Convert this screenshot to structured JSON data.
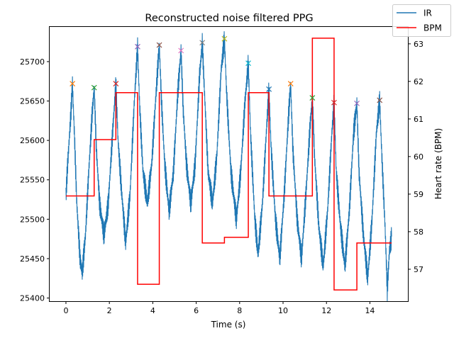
{
  "chart_data": {
    "type": "line",
    "title": "Reconstructed noise filtered PPG",
    "xlabel": "Time (s)",
    "ylabel_right": "Heart rate (BPM)",
    "xlim": [
      -0.75,
      15.75
    ],
    "ylim_left": [
      25396,
      25744
    ],
    "ylim_right": [
      56.15,
      63.45
    ],
    "x_ticks": [
      0,
      2,
      4,
      6,
      8,
      10,
      12,
      14
    ],
    "y_ticks_left": [
      25400,
      25450,
      25500,
      25550,
      25600,
      25650,
      25700
    ],
    "y_ticks_right": [
      57,
      58,
      59,
      60,
      61,
      62,
      63
    ],
    "legend": {
      "placement": "top-right",
      "entries": [
        "IR",
        "BPM"
      ]
    },
    "colors": {
      "ir": "#1f77b4",
      "bpm": "#ff0000"
    },
    "series": [
      {
        "name": "IR",
        "axis": "left",
        "points": [
          [
            0.0,
            25530
          ],
          [
            0.08,
            25570
          ],
          [
            0.16,
            25605
          ],
          [
            0.24,
            25640
          ],
          [
            0.3,
            25672
          ],
          [
            0.4,
            25600
          ],
          [
            0.5,
            25520
          ],
          [
            0.65,
            25450
          ],
          [
            0.75,
            25432
          ],
          [
            0.9,
            25480
          ],
          [
            1.05,
            25560
          ],
          [
            1.2,
            25630
          ],
          [
            1.3,
            25667
          ],
          [
            1.4,
            25590
          ],
          [
            1.55,
            25520
          ],
          [
            1.75,
            25480
          ],
          [
            1.95,
            25520
          ],
          [
            2.15,
            25610
          ],
          [
            2.3,
            25672
          ],
          [
            2.4,
            25600
          ],
          [
            2.55,
            25540
          ],
          [
            2.75,
            25470
          ],
          [
            2.95,
            25530
          ],
          [
            3.15,
            25650
          ],
          [
            3.3,
            25719
          ],
          [
            3.4,
            25640
          ],
          [
            3.55,
            25560
          ],
          [
            3.75,
            25520
          ],
          [
            3.95,
            25570
          ],
          [
            4.15,
            25660
          ],
          [
            4.3,
            25721
          ],
          [
            4.4,
            25650
          ],
          [
            4.55,
            25570
          ],
          [
            4.75,
            25510
          ],
          [
            4.95,
            25560
          ],
          [
            5.15,
            25660
          ],
          [
            5.3,
            25714
          ],
          [
            5.4,
            25640
          ],
          [
            5.55,
            25570
          ],
          [
            5.75,
            25520
          ],
          [
            5.95,
            25570
          ],
          [
            6.15,
            25680
          ],
          [
            6.28,
            25724
          ],
          [
            6.4,
            25650
          ],
          [
            6.55,
            25560
          ],
          [
            6.75,
            25520
          ],
          [
            6.95,
            25580
          ],
          [
            7.15,
            25690
          ],
          [
            7.3,
            25729
          ],
          [
            7.4,
            25660
          ],
          [
            7.6,
            25560
          ],
          [
            7.85,
            25500
          ],
          [
            8.05,
            25560
          ],
          [
            8.25,
            25650
          ],
          [
            8.4,
            25698
          ],
          [
            8.5,
            25610
          ],
          [
            8.7,
            25500
          ],
          [
            8.85,
            25455
          ],
          [
            9.05,
            25520
          ],
          [
            9.25,
            25620
          ],
          [
            9.35,
            25665
          ],
          [
            9.45,
            25590
          ],
          [
            9.65,
            25500
          ],
          [
            9.85,
            25450
          ],
          [
            10.05,
            25530
          ],
          [
            10.25,
            25630
          ],
          [
            10.35,
            25672
          ],
          [
            10.45,
            25590
          ],
          [
            10.65,
            25500
          ],
          [
            10.85,
            25450
          ],
          [
            11.05,
            25530
          ],
          [
            11.25,
            25620
          ],
          [
            11.35,
            25654
          ],
          [
            11.45,
            25580
          ],
          [
            11.65,
            25490
          ],
          [
            11.85,
            25440
          ],
          [
            12.05,
            25510
          ],
          [
            12.25,
            25610
          ],
          [
            12.35,
            25648
          ],
          [
            12.45,
            25560
          ],
          [
            12.65,
            25490
          ],
          [
            12.85,
            25440
          ],
          [
            13.05,
            25510
          ],
          [
            13.25,
            25610
          ],
          [
            13.4,
            25647
          ],
          [
            13.5,
            25560
          ],
          [
            13.7,
            25480
          ],
          [
            13.9,
            25425
          ],
          [
            14.1,
            25500
          ],
          [
            14.3,
            25610
          ],
          [
            14.45,
            25651
          ],
          [
            14.55,
            25580
          ],
          [
            14.7,
            25490
          ],
          [
            14.8,
            25410
          ],
          [
            14.9,
            25460
          ],
          [
            15.0,
            25478
          ]
        ]
      },
      {
        "name": "BPM",
        "axis": "right",
        "type": "step",
        "points": [
          [
            0.0,
            58.95
          ],
          [
            1.3,
            58.95
          ],
          [
            1.3,
            60.45
          ],
          [
            2.3,
            60.45
          ],
          [
            2.3,
            61.7
          ],
          [
            3.3,
            61.7
          ],
          [
            3.3,
            56.6
          ],
          [
            4.3,
            56.6
          ],
          [
            4.3,
            61.7
          ],
          [
            6.28,
            61.7
          ],
          [
            6.28,
            57.7
          ],
          [
            7.3,
            57.7
          ],
          [
            7.3,
            57.85
          ],
          [
            8.4,
            57.85
          ],
          [
            8.4,
            61.7
          ],
          [
            9.35,
            61.7
          ],
          [
            9.35,
            58.95
          ],
          [
            11.35,
            58.95
          ],
          [
            11.35,
            63.15
          ],
          [
            12.35,
            63.15
          ],
          [
            12.35,
            56.45
          ],
          [
            13.4,
            56.45
          ],
          [
            13.4,
            57.7
          ],
          [
            15.0,
            57.7
          ]
        ]
      }
    ],
    "peak_markers": [
      {
        "x": 0.3,
        "y": 25672,
        "color": "#ff7f0e"
      },
      {
        "x": 1.3,
        "y": 25667,
        "color": "#2ca02c"
      },
      {
        "x": 2.3,
        "y": 25672,
        "color": "#d62728"
      },
      {
        "x": 3.3,
        "y": 25719,
        "color": "#9467bd"
      },
      {
        "x": 4.3,
        "y": 25721,
        "color": "#8c564b"
      },
      {
        "x": 5.3,
        "y": 25714,
        "color": "#e377c2"
      },
      {
        "x": 6.28,
        "y": 25724,
        "color": "#7f7f7f"
      },
      {
        "x": 7.3,
        "y": 25729,
        "color": "#bcbd22"
      },
      {
        "x": 8.4,
        "y": 25698,
        "color": "#17becf"
      },
      {
        "x": 9.35,
        "y": 25665,
        "color": "#1f77b4"
      },
      {
        "x": 10.35,
        "y": 25672,
        "color": "#ff7f0e"
      },
      {
        "x": 11.35,
        "y": 25654,
        "color": "#2ca02c"
      },
      {
        "x": 12.35,
        "y": 25648,
        "color": "#d62728"
      },
      {
        "x": 13.4,
        "y": 25647,
        "color": "#9467bd"
      },
      {
        "x": 14.45,
        "y": 25651,
        "color": "#8c564b"
      }
    ]
  }
}
